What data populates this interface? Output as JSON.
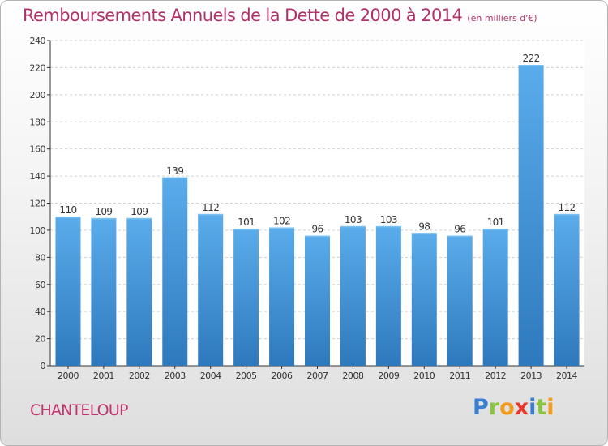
{
  "header": {
    "title": "Remboursements Annuels de la Dette de 2000 à 2014",
    "subtitle": "(en milliers d'€)"
  },
  "footer": {
    "commune": "CHANTELOUP",
    "logo_letters": [
      {
        "char": "P",
        "color": "#3a7fd0"
      },
      {
        "char": "r",
        "color": "#8bc43f"
      },
      {
        "char": "o",
        "color": "#f39c1b"
      },
      {
        "char": "x",
        "color": "#e8362b"
      },
      {
        "char": "i",
        "color": "#3a7fd0"
      },
      {
        "char": "t",
        "color": "#8bc43f"
      },
      {
        "char": "i",
        "color": "#f39c1b"
      }
    ]
  },
  "colors": {
    "title": "#b0316a",
    "bar_top": "#5aaceb",
    "bar_bottom": "#2e79bd",
    "grid": "#d0d0d0",
    "axis": "#333333"
  },
  "chart_data": {
    "type": "bar",
    "title": "Remboursements Annuels de la Dette de 2000 à 2014",
    "subtitle": "(en milliers d'€)",
    "categories": [
      "2000",
      "2001",
      "2002",
      "2003",
      "2004",
      "2005",
      "2006",
      "2007",
      "2008",
      "2009",
      "2010",
      "2011",
      "2012",
      "2013",
      "2014"
    ],
    "values": [
      110,
      109,
      109,
      139,
      112,
      101,
      102,
      96,
      103,
      103,
      98,
      96,
      101,
      222,
      112
    ],
    "ylim": [
      0,
      240
    ],
    "yticks": [
      0,
      20,
      40,
      60,
      80,
      100,
      120,
      140,
      160,
      180,
      200,
      220,
      240
    ],
    "grid": true,
    "data_labels": true,
    "xlabel": "",
    "ylabel": ""
  }
}
